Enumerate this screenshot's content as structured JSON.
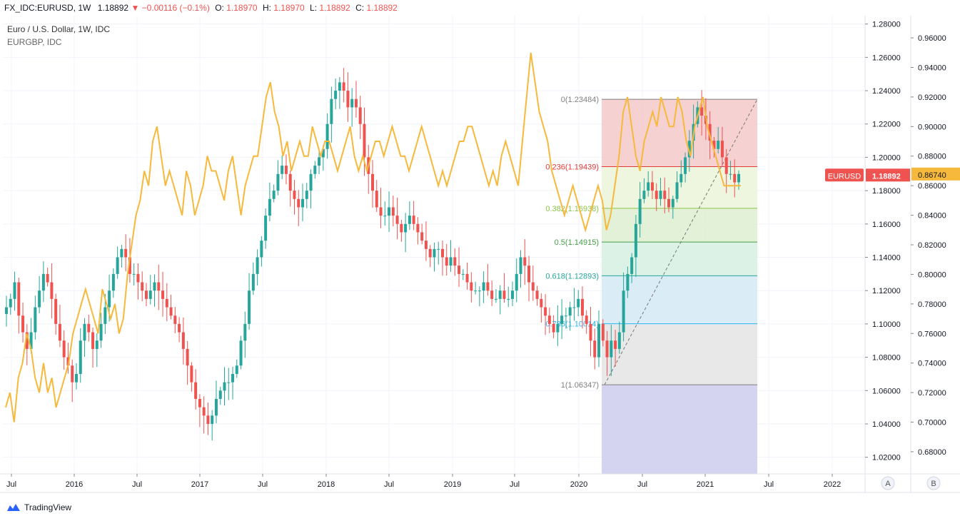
{
  "header": {
    "symbol": "FX_IDC:EURUSD, 1W",
    "last": "1.18892",
    "change": "−0.00116 (−0.1%)",
    "o_label": "O:",
    "o_value": "1.18970",
    "h_label": "H:",
    "h_value": "1.18970",
    "l_label": "L:",
    "l_value": "1.18892",
    "c_label": "C:",
    "c_value": "1.18892"
  },
  "legend": {
    "main": "Euro / U.S. Dollar, 1W, IDC",
    "compare": "EURGBP, IDC"
  },
  "colors": {
    "up": "#26a69a",
    "down": "#ef5350",
    "compare_line": "#f6b93b",
    "grid": "#f0f3fa"
  },
  "chart_data": {
    "type": "candlestick",
    "x_ticks": [
      "Jul",
      "2016",
      "Jul",
      "2017",
      "Jul",
      "2018",
      "Jul",
      "2019",
      "Jul",
      "2020",
      "Jul",
      "2021",
      "Jul",
      "2022"
    ],
    "x_range": [
      "2015-06",
      "2022-06"
    ],
    "y_axis_right": {
      "range": [
        1.01,
        1.285
      ],
      "ticks": [
        "1.28000",
        "1.26000",
        "1.24000",
        "1.22000",
        "1.20000",
        "1.18000",
        "1.16000",
        "1.14000",
        "1.12000",
        "1.10000",
        "1.08000",
        "1.06000",
        "1.04000",
        "1.02000"
      ]
    },
    "y_axis_compare": {
      "range": [
        0.665,
        0.975
      ],
      "ticks": [
        "0.96000",
        "0.94000",
        "0.92000",
        "0.90000",
        "0.88000",
        "0.86000",
        "0.84000",
        "0.82000",
        "0.80000",
        "0.78000",
        "0.76000",
        "0.74000",
        "0.72000",
        "0.70000",
        "0.68000"
      ]
    },
    "series": [
      {
        "name": "EURUSD",
        "closes": [
          1.11,
          1.115,
          1.125,
          1.105,
          1.095,
          1.085,
          1.095,
          1.11,
          1.12,
          1.13,
          1.125,
          1.115,
          1.1,
          1.09,
          1.08,
          1.075,
          1.065,
          1.07,
          1.09,
          1.1,
          1.095,
          1.085,
          1.09,
          1.1,
          1.11,
          1.12,
          1.13,
          1.14,
          1.145,
          1.14,
          1.13,
          1.13,
          1.125,
          1.12,
          1.115,
          1.12,
          1.125,
          1.12,
          1.115,
          1.11,
          1.105,
          1.1,
          1.095,
          1.085,
          1.075,
          1.065,
          1.055,
          1.05,
          1.045,
          1.04,
          1.045,
          1.055,
          1.06,
          1.065,
          1.065,
          1.07,
          1.075,
          1.09,
          1.1,
          1.12,
          1.13,
          1.14,
          1.15,
          1.165,
          1.175,
          1.18,
          1.19,
          1.195,
          1.19,
          1.18,
          1.175,
          1.17,
          1.175,
          1.18,
          1.19,
          1.195,
          1.2,
          1.205,
          1.22,
          1.235,
          1.24,
          1.245,
          1.24,
          1.23,
          1.235,
          1.23,
          1.22,
          1.2,
          1.19,
          1.18,
          1.17,
          1.165,
          1.165,
          1.17,
          1.165,
          1.16,
          1.155,
          1.16,
          1.165,
          1.16,
          1.155,
          1.15,
          1.145,
          1.14,
          1.145,
          1.145,
          1.14,
          1.135,
          1.14,
          1.135,
          1.13,
          1.13,
          1.125,
          1.12,
          1.12,
          1.12,
          1.125,
          1.12,
          1.115,
          1.115,
          1.12,
          1.115,
          1.115,
          1.12,
          1.13,
          1.14,
          1.135,
          1.125,
          1.12,
          1.115,
          1.11,
          1.105,
          1.1,
          1.095,
          1.1,
          1.105,
          1.105,
          1.11,
          1.11,
          1.115,
          1.105,
          1.1,
          1.09,
          1.08,
          1.1,
          1.09,
          1.08,
          1.09,
          1.085,
          1.095,
          1.12,
          1.13,
          1.14,
          1.16,
          1.175,
          1.18,
          1.185,
          1.18,
          1.175,
          1.18,
          1.175,
          1.17,
          1.175,
          1.185,
          1.19,
          1.2,
          1.21,
          1.22,
          1.23,
          1.225,
          1.22,
          1.21,
          1.205,
          1.21,
          1.2,
          1.19,
          1.19,
          1.185,
          1.19
        ],
        "last_label": "1.18892"
      },
      {
        "name": "EURGBP",
        "values": [
          0.71,
          0.72,
          0.7,
          0.73,
          0.74,
          0.76,
          0.75,
          0.73,
          0.72,
          0.74,
          0.72,
          0.73,
          0.71,
          0.72,
          0.73,
          0.74,
          0.76,
          0.77,
          0.78,
          0.79,
          0.78,
          0.77,
          0.76,
          0.79,
          0.78,
          0.77,
          0.78,
          0.76,
          0.77,
          0.8,
          0.82,
          0.84,
          0.85,
          0.87,
          0.86,
          0.89,
          0.9,
          0.88,
          0.86,
          0.87,
          0.86,
          0.85,
          0.84,
          0.87,
          0.86,
          0.84,
          0.85,
          0.86,
          0.88,
          0.87,
          0.87,
          0.86,
          0.85,
          0.87,
          0.88,
          0.86,
          0.84,
          0.86,
          0.87,
          0.88,
          0.88,
          0.9,
          0.92,
          0.93,
          0.91,
          0.9,
          0.88,
          0.89,
          0.87,
          0.88,
          0.89,
          0.88,
          0.88,
          0.9,
          0.89,
          0.88,
          0.89,
          0.89,
          0.88,
          0.87,
          0.88,
          0.89,
          0.9,
          0.88,
          0.87,
          0.88,
          0.87,
          0.88,
          0.89,
          0.89,
          0.88,
          0.89,
          0.9,
          0.89,
          0.88,
          0.88,
          0.87,
          0.88,
          0.89,
          0.9,
          0.89,
          0.88,
          0.87,
          0.86,
          0.87,
          0.86,
          0.87,
          0.88,
          0.89,
          0.89,
          0.9,
          0.9,
          0.89,
          0.88,
          0.87,
          0.86,
          0.87,
          0.86,
          0.88,
          0.89,
          0.88,
          0.87,
          0.86,
          0.89,
          0.92,
          0.95,
          0.93,
          0.91,
          0.9,
          0.89,
          0.87,
          0.86,
          0.85,
          0.84,
          0.85,
          0.86,
          0.85,
          0.84,
          0.83,
          0.84,
          0.85,
          0.86,
          0.85,
          0.83,
          0.84,
          0.86,
          0.88,
          0.91,
          0.92,
          0.9,
          0.88,
          0.87,
          0.89,
          0.9,
          0.91,
          0.9,
          0.92,
          0.91,
          0.9,
          0.9,
          0.92,
          0.91,
          0.89,
          0.88,
          0.9,
          0.91,
          0.92,
          0.9,
          0.89,
          0.88,
          0.87,
          0.86,
          0.86,
          0.86,
          0.86,
          0.86
        ],
        "last_label": "0.86740"
      }
    ],
    "fibonacci": {
      "high": 1.23484,
      "low": 1.06347,
      "levels": [
        {
          "ratio": 0,
          "label": "0(1.23484)",
          "price": 1.23484,
          "color": "#808080",
          "fill": "#f4cccc"
        },
        {
          "ratio": 0.236,
          "label": "0.236(1.19439)",
          "price": 1.19439,
          "color": "#e53935",
          "fill": "#edf5dd"
        },
        {
          "ratio": 0.382,
          "label": "0.382(1.16938)",
          "price": 1.16938,
          "color": "#8bc34a",
          "fill": "#dff0d3"
        },
        {
          "ratio": 0.5,
          "label": "0.5(1.14915)",
          "price": 1.14915,
          "color": "#43a047",
          "fill": "#d9f1e3"
        },
        {
          "ratio": 0.618,
          "label": "0.618(1.12893)",
          "price": 1.12893,
          "color": "#26a69a",
          "fill": "#d6eaf5"
        },
        {
          "ratio": 0.786,
          "label": "0.786(1.10014)",
          "price": 1.10014,
          "color": "#29b6f6",
          "fill": "#e6e6e6"
        },
        {
          "ratio": 1,
          "label": "1(1.06347)",
          "price": 1.06347,
          "color": "#808080",
          "fill": "#cfcfef"
        }
      ]
    },
    "scale_buttons": [
      "A",
      "B"
    ]
  },
  "footer": {
    "brand": "TradingView"
  }
}
